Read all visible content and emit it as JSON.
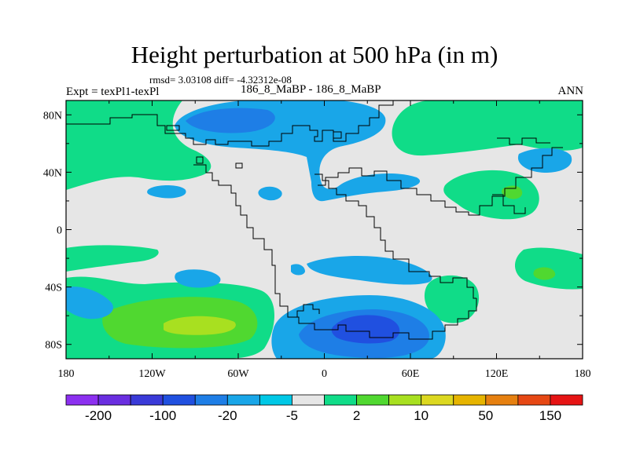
{
  "map": {
    "title": "Height perturbation at 500 hPa (in m)",
    "stats": "rmsd= 3.03108 diff= -4.32312e-08",
    "left_label": "Expt = texPl1-texPl",
    "center_label": "186_8_MaBP - 186_8_MaBP",
    "right_label": "ANN",
    "projection": "cylindrical-equidistant",
    "lon_range": [
      -180,
      180
    ],
    "lat_range": [
      -90,
      90
    ],
    "x_ticks": [
      {
        "lon": -180,
        "label": "180"
      },
      {
        "lon": -120,
        "label": "120W"
      },
      {
        "lon": -60,
        "label": "60W"
      },
      {
        "lon": 0,
        "label": "0"
      },
      {
        "lon": 60,
        "label": "60E"
      },
      {
        "lon": 120,
        "label": "120E"
      },
      {
        "lon": 180,
        "label": "180"
      }
    ],
    "y_ticks": [
      {
        "lat": 80,
        "label": "80N"
      },
      {
        "lat": 40,
        "label": "40N"
      },
      {
        "lat": 0,
        "label": "0"
      },
      {
        "lat": -40,
        "label": "40S"
      },
      {
        "lat": -80,
        "label": "80S"
      }
    ],
    "background_fill": "#e6e6e6"
  },
  "colorbar": {
    "colors": [
      "#8c30f0",
      "#6a2ee0",
      "#3a3ad8",
      "#2050e0",
      "#1e7ee6",
      "#19a6e8",
      "#00c8e6",
      "#e6e6e6",
      "#10dc88",
      "#50d830",
      "#a8e020",
      "#dcd820",
      "#e6b400",
      "#e68010",
      "#e64814",
      "#e61414"
    ],
    "labels": [
      {
        "boundary": 1,
        "text": "-200"
      },
      {
        "boundary": 3,
        "text": "-100"
      },
      {
        "boundary": 5,
        "text": "-20"
      },
      {
        "boundary": 7,
        "text": "-5"
      },
      {
        "boundary": 9,
        "text": "2"
      },
      {
        "boundary": 11,
        "text": "10"
      },
      {
        "boundary": 13,
        "text": "50"
      },
      {
        "boundary": 15,
        "text": "150"
      }
    ]
  },
  "regions": [
    {
      "name": "arctic-low",
      "level": "-5",
      "color": "#19a6e8",
      "lon": -60,
      "lat": 80,
      "rx_deg": 55,
      "ry_deg": 14
    },
    {
      "name": "arctic-low-core",
      "level": "-10",
      "color": "#1e7ee6",
      "lon": -60,
      "lat": 82,
      "rx_deg": 20,
      "ry_deg": 6
    },
    {
      "name": "south-atlantic-low",
      "level": "-5",
      "color": "#19a6e8",
      "lon": 20,
      "lat": -66,
      "rx_deg": 55,
      "ry_deg": 22
    },
    {
      "name": "south-atlantic-low-core",
      "level": "-10",
      "color": "#1e7ee6",
      "lon": 25,
      "lat": -65,
      "rx_deg": 35,
      "ry_deg": 14
    },
    {
      "name": "south-atlantic-low-core-inner",
      "level": "-20",
      "color": "#2050e0",
      "lon": 30,
      "lat": -63,
      "rx_deg": 15,
      "ry_deg": 7
    },
    {
      "name": "south-pacific-high",
      "level": "5",
      "color": "#10dc88",
      "lon": -100,
      "lat": -63,
      "rx_deg": 55,
      "ry_deg": 27
    },
    {
      "name": "south-pacific-high-core",
      "level": "10",
      "color": "#50d830",
      "lon": -100,
      "lat": -65,
      "rx_deg": 45,
      "ry_deg": 16
    },
    {
      "name": "south-pacific-high-inner",
      "level": "15",
      "color": "#a8e020",
      "lon": -88,
      "lat": -65,
      "rx_deg": 16,
      "ry_deg": 6
    }
  ]
}
